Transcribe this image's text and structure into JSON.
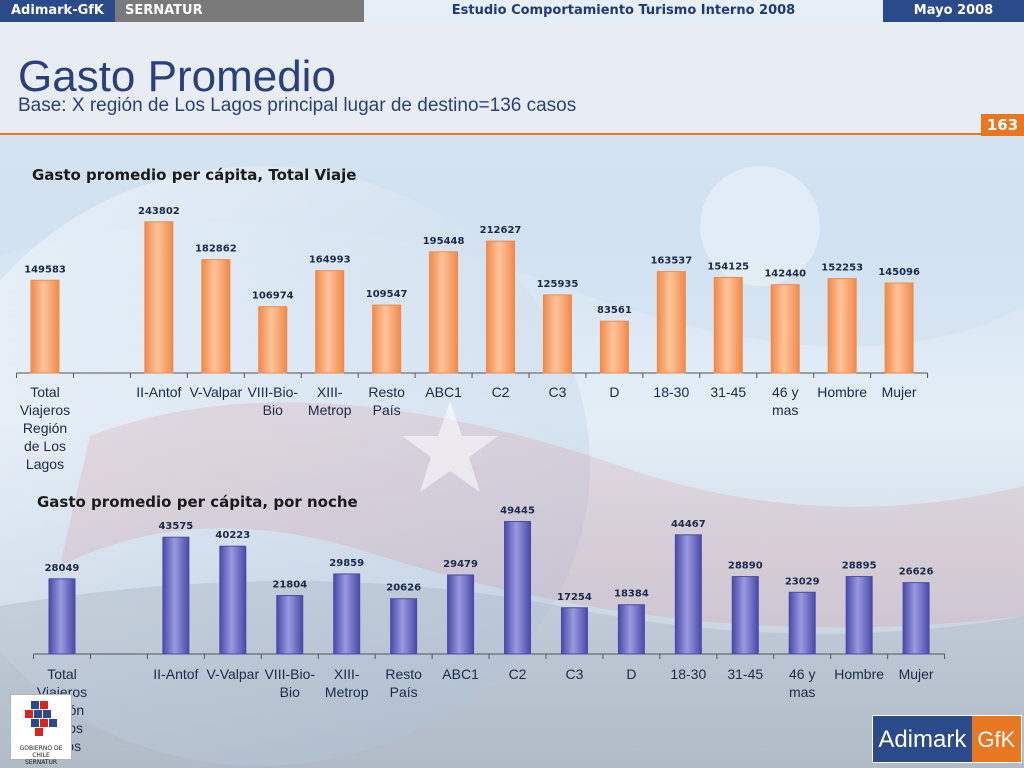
{
  "header": {
    "brand": "Adimark-GfK",
    "client": "SERNATUR",
    "study": "Estudio Comportamiento Turismo Interno 2008",
    "date": "Mayo 2008"
  },
  "page": {
    "title": "Gasto Promedio",
    "subtitle": "Base: X región de Los Lagos principal lugar de destino=136 casos",
    "number": "163"
  },
  "colors": {
    "bar1": "#f08a4b",
    "bar1_light": "#ffc49a",
    "bar2": "#4a4aa8",
    "bar2_light": "#9a9ae0",
    "accent": "#e87722",
    "brand": "#2b4a8a"
  },
  "chart_data": [
    {
      "type": "bar",
      "title": "Gasto promedio per cápita, Total Viaje",
      "categories": [
        [
          "Total",
          "Viajeros",
          "Región",
          "de Los",
          "Lagos"
        ],
        [],
        [
          "II-Antof"
        ],
        [
          "V-Valpar"
        ],
        [
          "VIII-Bio-",
          "Bio"
        ],
        [
          "XIII-",
          "Metrop"
        ],
        [
          "Resto",
          "País"
        ],
        [
          "ABC1"
        ],
        [
          "C2"
        ],
        [
          "C3"
        ],
        [
          "D"
        ],
        [
          "18-30"
        ],
        [
          "31-45"
        ],
        [
          "46 y",
          "mas"
        ],
        [
          "Hombre"
        ],
        [
          "Mujer"
        ]
      ],
      "values": [
        149583,
        null,
        243802,
        182862,
        106974,
        164993,
        109547,
        195448,
        212627,
        125935,
        83561,
        163537,
        154125,
        142440,
        152253,
        145096
      ],
      "ylim": [
        0,
        250000
      ]
    },
    {
      "type": "bar",
      "title": "Gasto promedio per cápita, por noche",
      "categories": [
        [
          "Total",
          "Viajeros",
          "Región",
          "de Los",
          "Lagos"
        ],
        [],
        [
          "II-Antof"
        ],
        [
          "V-Valpar"
        ],
        [
          "VIII-Bio-",
          "Bio"
        ],
        [
          "XIII-",
          "Metrop"
        ],
        [
          "Resto",
          "País"
        ],
        [
          "ABC1"
        ],
        [
          "C2"
        ],
        [
          "C3"
        ],
        [
          "D"
        ],
        [
          "18-30"
        ],
        [
          "31-45"
        ],
        [
          "46 y",
          "mas"
        ],
        [
          "Hombre"
        ],
        [
          "Mujer"
        ]
      ],
      "values": [
        28049,
        null,
        43575,
        40223,
        21804,
        29859,
        20626,
        29479,
        49445,
        17254,
        18384,
        44467,
        28890,
        23029,
        28895,
        26626
      ],
      "ylim": [
        0,
        50000
      ]
    }
  ],
  "logos": {
    "gov": "GOBIERNO DE CHILE",
    "gov_sub": "SERNATUR",
    "adimark": "Adimark",
    "gfk": "GfK"
  }
}
